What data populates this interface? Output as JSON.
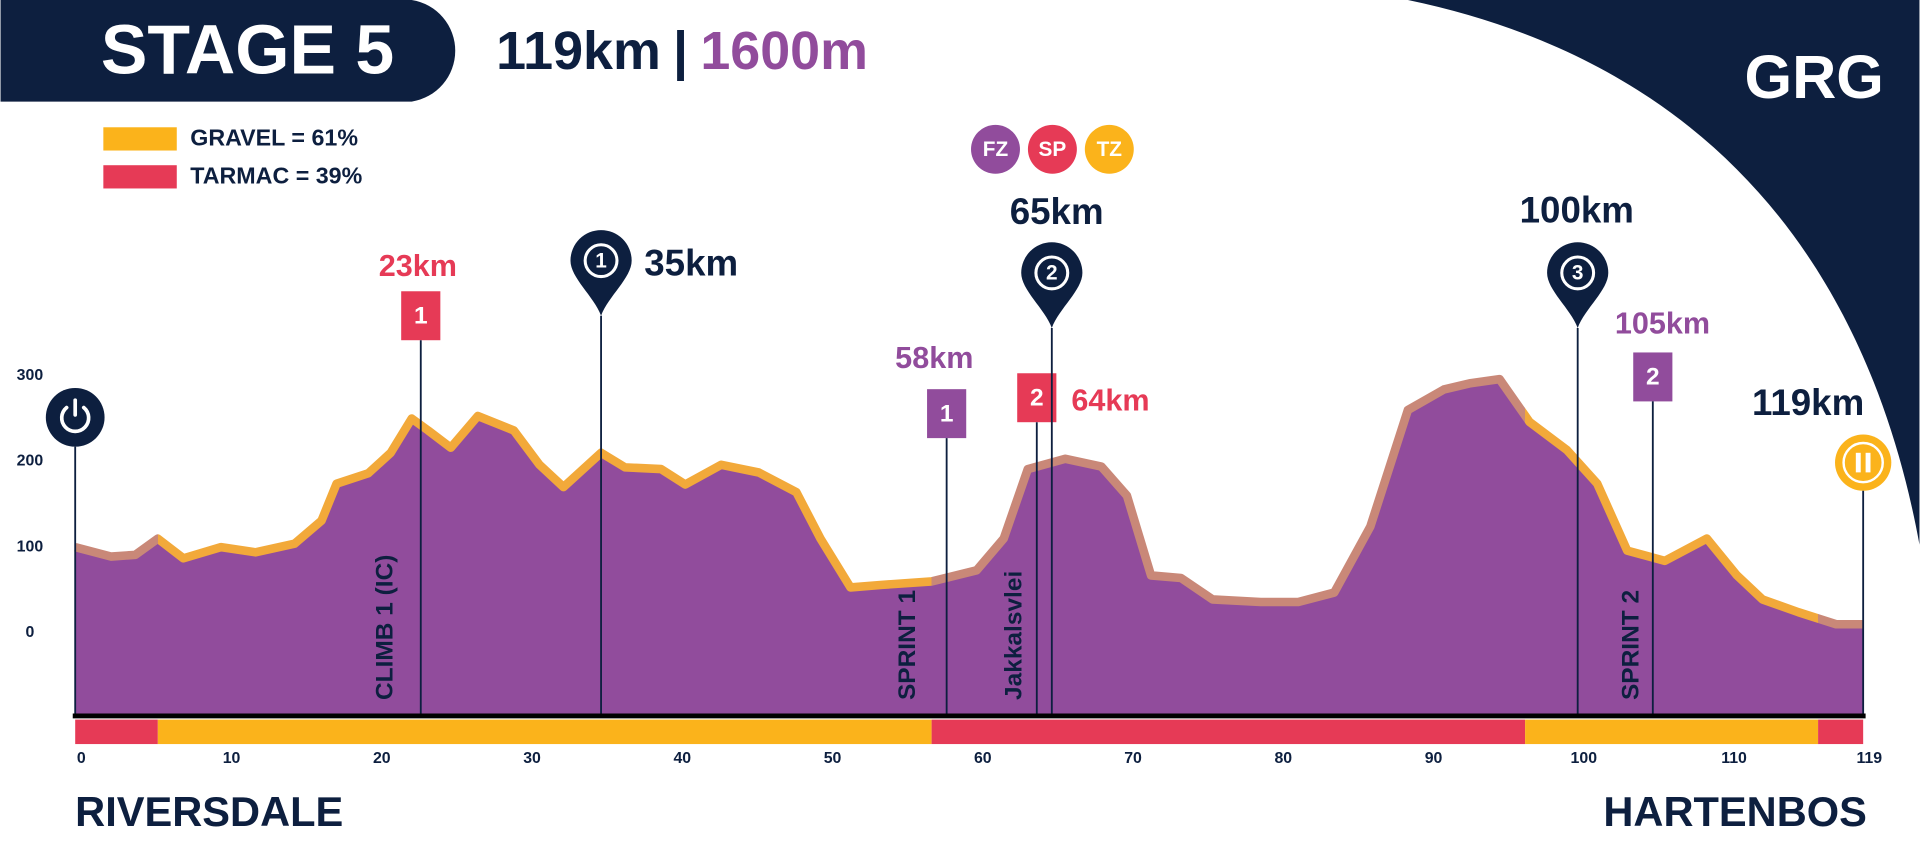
{
  "chart_data": {
    "type": "area",
    "title": "STAGE 5",
    "distance": "119km",
    "separator": "|",
    "climbing": "1600m",
    "logo": "GRG",
    "color": "#914c9c",
    "x": [
      0,
      2.4,
      4,
      5.5,
      7.2,
      9.7,
      12,
      14.6,
      16.4,
      17.4,
      19.5,
      21,
      22.4,
      23.5,
      25,
      26.8,
      29.2,
      30.9,
      32.5,
      35,
      36.6,
      39,
      40.6,
      43,
      45.5,
      48,
      49.6,
      51.6,
      53.7,
      57,
      60,
      61.8,
      63.4,
      65.9,
      68.3,
      70,
      71.6,
      73.6,
      75.7,
      78.9,
      81.4,
      83.8,
      86.2,
      88.7,
      91.1,
      92.8,
      94.8,
      96.8,
      99.3,
      101.3,
      103.3,
      105.8,
      108.6,
      110.6,
      112.3,
      114.7,
      117.2,
      119
    ],
    "values": [
      100,
      89,
      91,
      110,
      87,
      100,
      94,
      104,
      131,
      174,
      186,
      210,
      250,
      236,
      216,
      253,
      236,
      196,
      170,
      210,
      193,
      191,
      173,
      196,
      187,
      164,
      110,
      53,
      56,
      60,
      73,
      110,
      191,
      203,
      194,
      160,
      67,
      64,
      39,
      36,
      36,
      47,
      124,
      260,
      284,
      291,
      296,
      246,
      213,
      174,
      96,
      84,
      110,
      67,
      39,
      24,
      10,
      10
    ],
    "xlim": [
      0,
      119
    ],
    "xticks": [
      0,
      10,
      20,
      30,
      40,
      50,
      60,
      70,
      80,
      90,
      100,
      110,
      119
    ],
    "ylim": [
      -97,
      400
    ],
    "yticks": [
      0,
      100,
      200,
      300
    ],
    "legend": [
      {
        "name": "GRAVEL = 61%",
        "color": "#fbb31b"
      },
      {
        "name": "TARMAC = 39%",
        "color": "#e63a56"
      }
    ],
    "surface_segments": [
      {
        "from": 0,
        "to": 5.5,
        "color": "#e63a56",
        "line_color": "#c98878"
      },
      {
        "from": 5.5,
        "to": 57,
        "color": "#fbb31b",
        "line_color": "#f2a93a"
      },
      {
        "from": 57,
        "to": 96.5,
        "color": "#e63a56",
        "line_color": "#c98878"
      },
      {
        "from": 96.5,
        "to": 116,
        "color": "#fbb31b",
        "line_color": "#f2a93a"
      },
      {
        "from": 116,
        "to": 119,
        "color": "#e63a56",
        "line_color": "#c98878"
      }
    ],
    "badges": [
      {
        "text": "FZ",
        "color": "#914c9c"
      },
      {
        "text": "SP",
        "color": "#e63a56"
      },
      {
        "text": "TZ",
        "color": "#fbb31b"
      }
    ],
    "markers": [
      {
        "shape": "start",
        "x": 0,
        "color": "#0d1f3f"
      },
      {
        "shape": "box",
        "x": {
          "value": 23,
          "label": "23km"
        },
        "badge": "1",
        "name": "CLIMB 1 (IC)",
        "color": "#e63a56"
      },
      {
        "shape": "pin",
        "x": {
          "value": 35,
          "label": "35km"
        },
        "badge": "1",
        "color": "#0d1f3f"
      },
      {
        "shape": "box",
        "x": {
          "value": 58,
          "label": "58km"
        },
        "badge": "1",
        "name": "SPRINT 1",
        "color": "#914c9c"
      },
      {
        "shape": "box",
        "x": {
          "value": 64,
          "label": "64km"
        },
        "badge": "2",
        "name": "Jakkalsvlei",
        "color": "#e63a56"
      },
      {
        "shape": "pin",
        "x": {
          "value": 65,
          "label": "65km"
        },
        "badge": "2",
        "color": "#0d1f3f"
      },
      {
        "shape": "pin",
        "x": {
          "value": 100,
          "label": "100km"
        },
        "badge": "3",
        "color": "#0d1f3f"
      },
      {
        "shape": "box",
        "x": {
          "value": 105,
          "label": "105km"
        },
        "badge": "2",
        "name": "SPRINT 2",
        "color": "#914c9c"
      },
      {
        "shape": "finish",
        "x": {
          "value": 119,
          "label": "119km"
        },
        "color": "#fbb31b"
      }
    ],
    "start": "RIVERSDALE",
    "finish": "HARTENBOS"
  }
}
